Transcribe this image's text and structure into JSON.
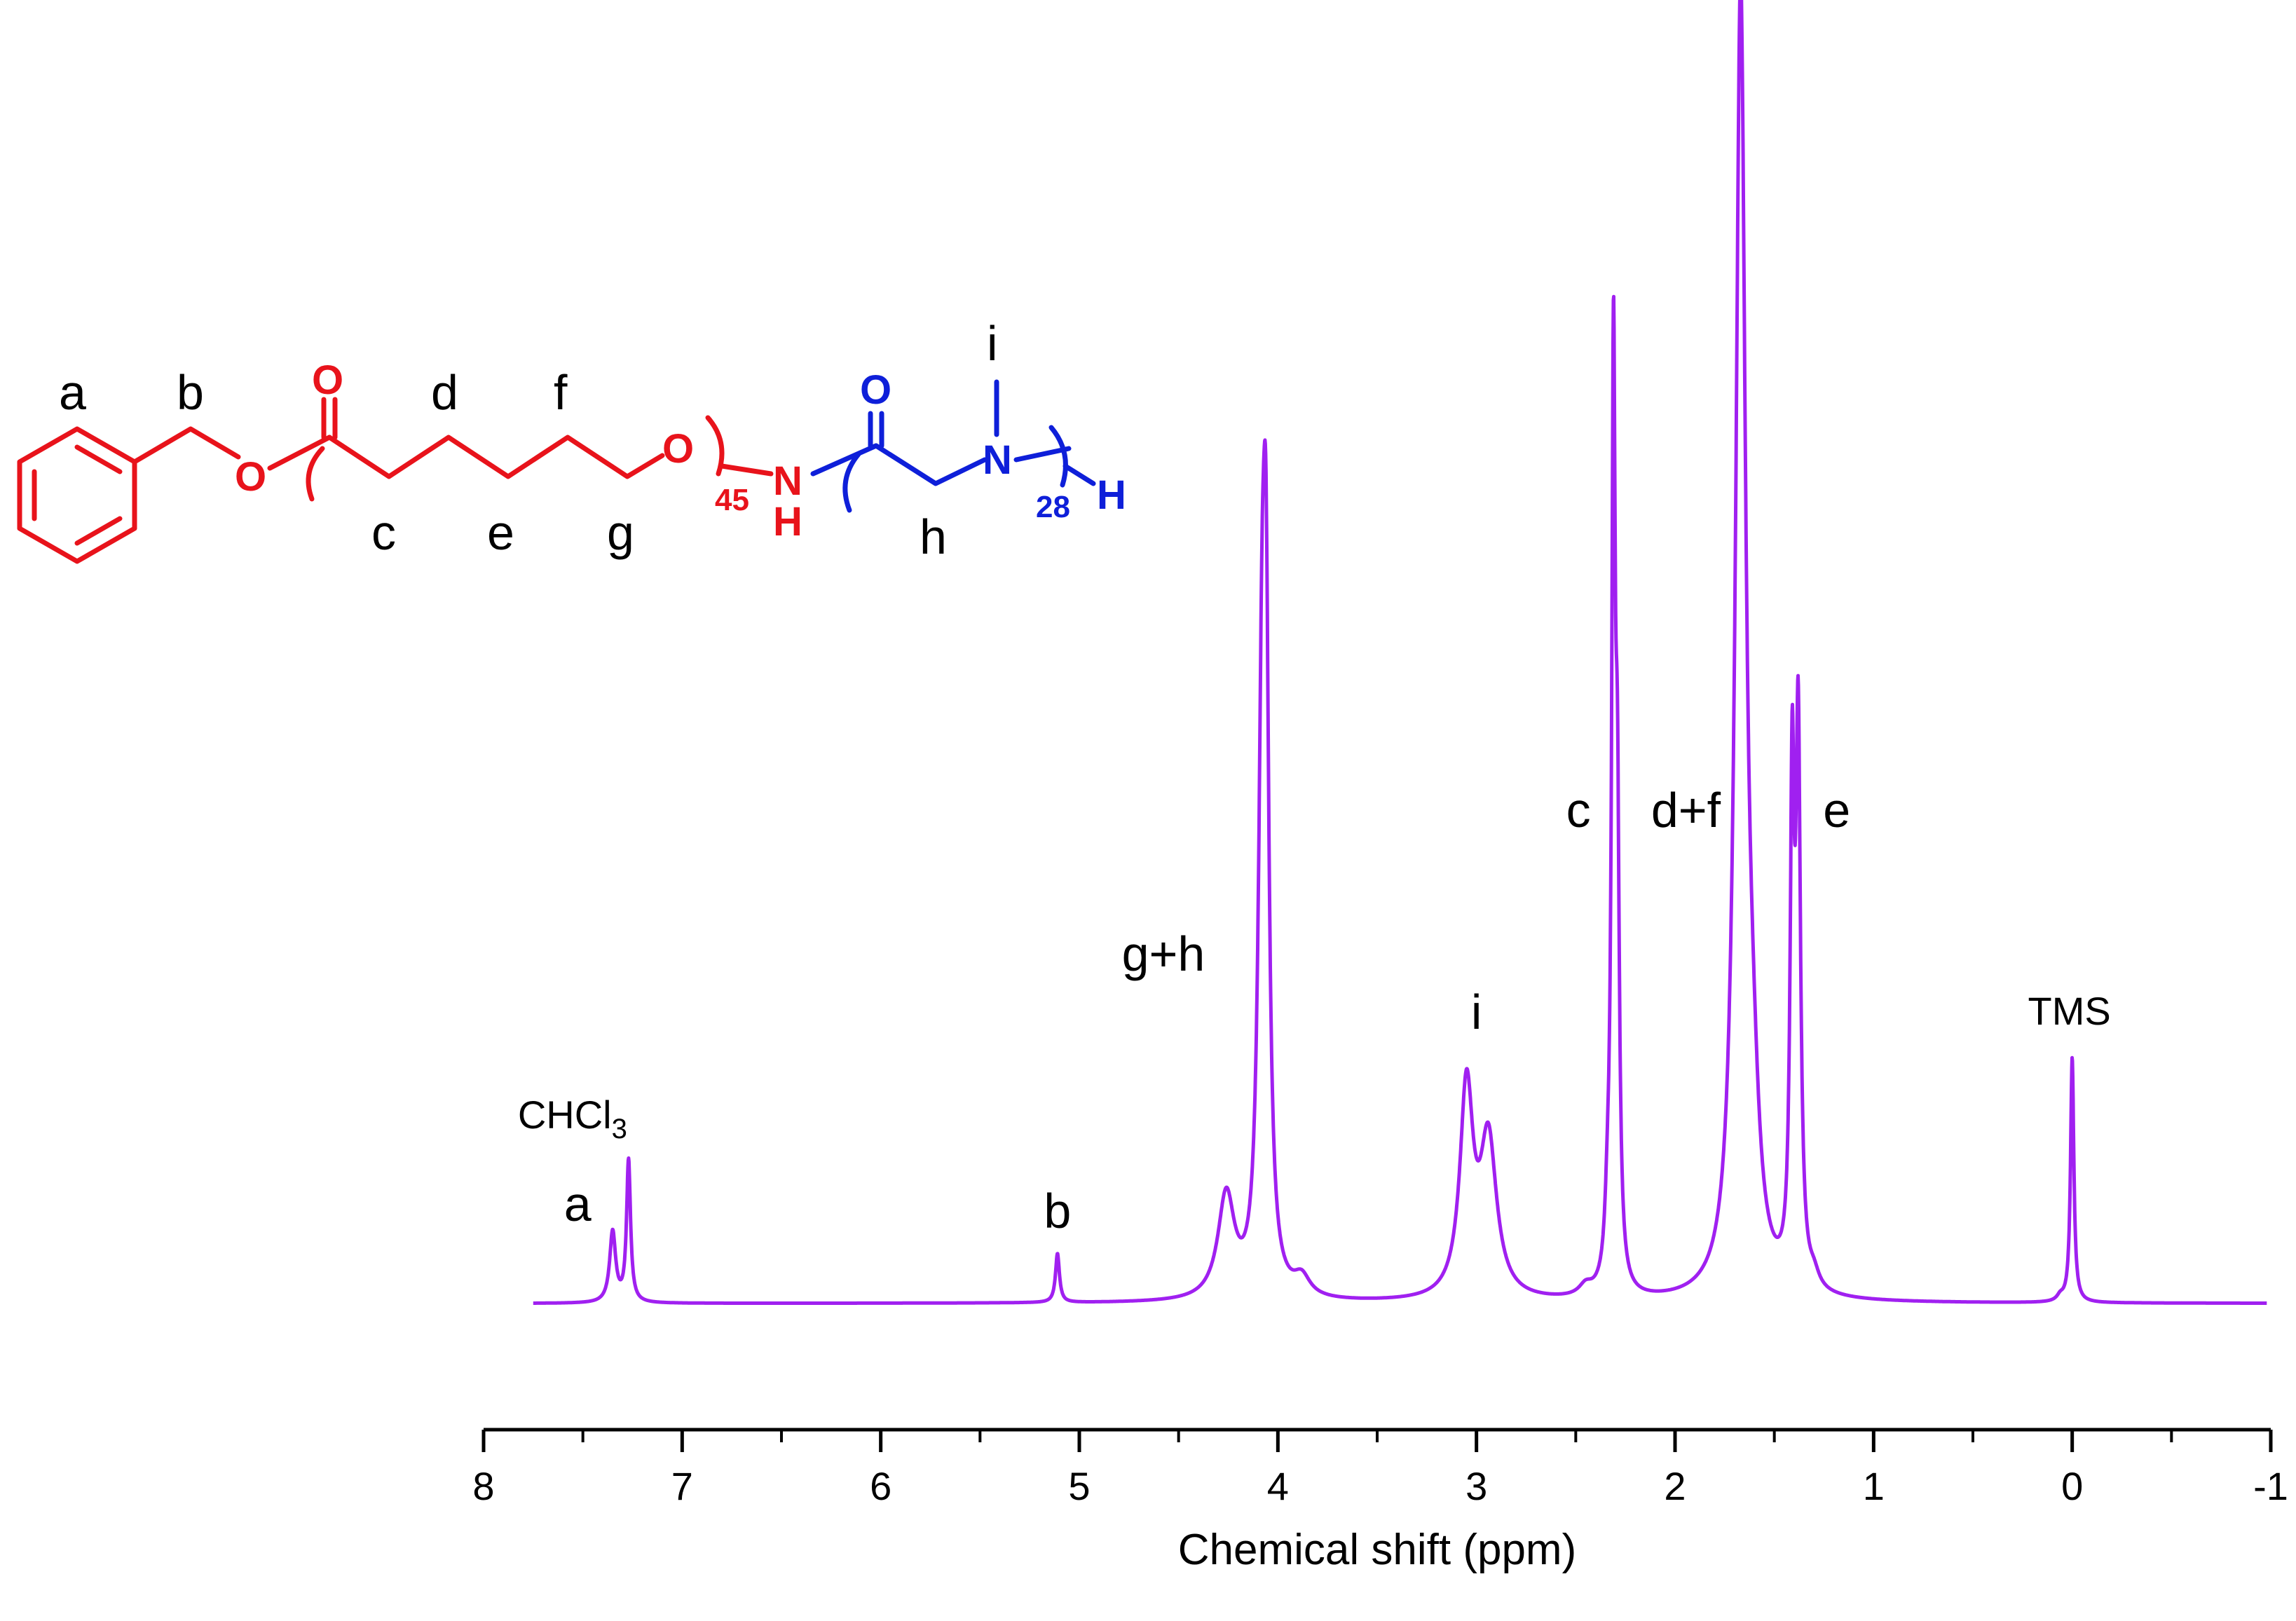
{
  "chart_data": {
    "type": "line",
    "xlabel": "Chemical shift (ppm)",
    "ylabel": "",
    "xlim": [
      8,
      -1
    ],
    "x_reversed": true,
    "ylim": [
      0,
      1.0
    ],
    "y_axis_visible": false,
    "grid": false,
    "line_color": "#a020f0",
    "x_ticks": [
      8,
      7,
      6,
      5,
      4,
      3,
      2,
      1,
      0,
      -1
    ],
    "x_tick_labels": [
      "8",
      "7",
      "6",
      "5",
      "4",
      "3",
      "2",
      "1",
      "0",
      "-1"
    ],
    "peaks": [
      {
        "shift": 7.35,
        "height": 0.055,
        "width": 0.018
      },
      {
        "shift": 7.27,
        "height": 0.11,
        "width": 0.012
      },
      {
        "shift": 5.11,
        "height": 0.038,
        "width": 0.012
      },
      {
        "shift": 4.26,
        "height": 0.08,
        "width": 0.05
      },
      {
        "shift": 4.08,
        "height": 0.4,
        "width": 0.022
      },
      {
        "shift": 4.06,
        "height": 0.42,
        "width": 0.018
      },
      {
        "shift": 3.88,
        "height": 0.015,
        "width": 0.05
      },
      {
        "shift": 3.05,
        "height": 0.16,
        "width": 0.04
      },
      {
        "shift": 2.94,
        "height": 0.12,
        "width": 0.05
      },
      {
        "shift": 2.45,
        "height": 0.008,
        "width": 0.04
      },
      {
        "shift": 2.34,
        "height": 0.04,
        "width": 0.015
      },
      {
        "shift": 2.31,
        "height": 0.7,
        "width": 0.011
      },
      {
        "shift": 2.29,
        "height": 0.3,
        "width": 0.011
      },
      {
        "shift": 1.67,
        "height": 1.0,
        "width": 0.03
      },
      {
        "shift": 1.61,
        "height": 0.09,
        "width": 0.04
      },
      {
        "shift": 1.41,
        "height": 0.37,
        "width": 0.012
      },
      {
        "shift": 1.38,
        "height": 0.42,
        "width": 0.014
      },
      {
        "shift": 1.3,
        "height": 0.01,
        "width": 0.03
      },
      {
        "shift": 0.06,
        "height": 0.004,
        "width": 0.02
      },
      {
        "shift": 0.0,
        "height": 0.19,
        "width": 0.01
      }
    ],
    "annotations": [
      {
        "text": "a",
        "shift": 7.35
      },
      {
        "text": "CHCl",
        "sub": "3",
        "shift": 7.27
      },
      {
        "text": "b",
        "shift": 5.11
      },
      {
        "text": "g+h",
        "shift": 4.1
      },
      {
        "text": "i",
        "shift": 3.0
      },
      {
        "text": "c",
        "shift": 2.31
      },
      {
        "text": "d+f",
        "shift": 1.67
      },
      {
        "text": "e",
        "shift": 1.38
      },
      {
        "text": "TMS",
        "shift": 0.0
      }
    ]
  },
  "structure": {
    "ring_color": "#e8131b",
    "peg_color": "#0e1fd9",
    "proton_labels": [
      "a",
      "b",
      "c",
      "d",
      "e",
      "f",
      "g",
      "h",
      "i"
    ],
    "atoms": {
      "o_ester": "O",
      "o_carbonyl": "O",
      "o_chain": "O",
      "nh_n": "N",
      "nh_h": "H",
      "o_carbonyl2": "O",
      "n_methyl": "N",
      "h_end": "H"
    },
    "repeat_1": "45",
    "repeat_2": "28"
  }
}
